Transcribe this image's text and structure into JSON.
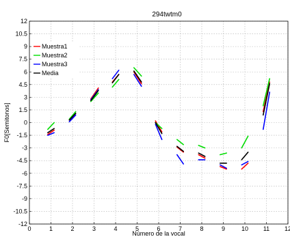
{
  "chart_data": {
    "type": "line",
    "title": "294twtm0",
    "xlabel": "Número de la vocal",
    "ylabel": "F0[Semitonos]",
    "xlim": [
      0,
      12
    ],
    "ylim": [
      -12,
      12
    ],
    "xticks": [
      "0",
      "1",
      "2",
      "3",
      "4",
      "5",
      "6",
      "7",
      "8",
      "9",
      "10",
      "11",
      "12"
    ],
    "yticks": [
      "-12",
      "-10.5",
      "-9",
      "-7.5",
      "-6",
      "-4.5",
      "-3",
      "-1.5",
      "0",
      "1.5",
      "3",
      "4.5",
      "6",
      "7.5",
      "9",
      "10.5",
      "12"
    ],
    "grid": true,
    "legend_position": "top-left",
    "series": [
      {
        "name": "Muestra1",
        "color": "#ff0000",
        "segments": [
          [
            [
              0.85,
              -1.4
            ],
            [
              1.15,
              -0.9
            ]
          ],
          [
            [
              1.85,
              0.3
            ],
            [
              2.15,
              1.1
            ]
          ],
          [
            [
              2.85,
              2.8
            ],
            [
              3.2,
              4.1
            ]
          ],
          [
            [
              3.85,
              4.8
            ],
            [
              4.15,
              5.7
            ]
          ],
          [
            [
              4.85,
              6.0
            ],
            [
              5.2,
              4.6
            ]
          ],
          [
            [
              5.85,
              0.2
            ],
            [
              6.15,
              -1.1
            ]
          ],
          [
            [
              6.85,
              -2.9
            ],
            [
              7.15,
              -3.5
            ]
          ],
          [
            [
              7.85,
              -3.8
            ],
            [
              8.15,
              -4.2
            ]
          ],
          [
            [
              8.85,
              -5.2
            ],
            [
              9.15,
              -5.5
            ]
          ],
          [
            [
              9.85,
              -5.5
            ],
            [
              10.15,
              -4.8
            ]
          ],
          [
            [
              10.85,
              1.3
            ],
            [
              11.15,
              4.8
            ]
          ]
        ]
      },
      {
        "name": "Muestra2",
        "color": "#00dd00",
        "segments": [
          [
            [
              0.85,
              -0.8
            ],
            [
              1.15,
              0.0
            ]
          ],
          [
            [
              1.85,
              0.4
            ],
            [
              2.15,
              1.3
            ]
          ],
          [
            [
              2.85,
              2.5
            ],
            [
              3.2,
              3.5
            ]
          ],
          [
            [
              3.85,
              4.2
            ],
            [
              4.15,
              5.1
            ]
          ],
          [
            [
              4.85,
              6.5
            ],
            [
              5.2,
              5.5
            ]
          ],
          [
            [
              5.85,
              0.0
            ],
            [
              6.15,
              -0.7
            ]
          ],
          [
            [
              6.85,
              -2.0
            ],
            [
              7.15,
              -2.6
            ]
          ],
          [
            [
              7.85,
              -2.7
            ],
            [
              8.15,
              -3.0
            ]
          ],
          [
            [
              8.85,
              -3.8
            ],
            [
              9.15,
              -3.6
            ]
          ],
          [
            [
              9.85,
              -3.0
            ],
            [
              10.15,
              -1.6
            ]
          ],
          [
            [
              10.85,
              2.0
            ],
            [
              11.15,
              5.2
            ]
          ]
        ]
      },
      {
        "name": "Muestra3",
        "color": "#0000ff",
        "segments": [
          [
            [
              0.85,
              -1.5
            ],
            [
              1.15,
              -1.2
            ]
          ],
          [
            [
              1.85,
              0.1
            ],
            [
              2.15,
              0.9
            ]
          ],
          [
            [
              2.85,
              2.7
            ],
            [
              3.2,
              3.9
            ]
          ],
          [
            [
              3.85,
              5.2
            ],
            [
              4.15,
              6.2
            ]
          ],
          [
            [
              4.85,
              5.7
            ],
            [
              5.2,
              4.3
            ]
          ],
          [
            [
              5.85,
              -0.2
            ],
            [
              6.15,
              -2.0
            ]
          ],
          [
            [
              6.85,
              -3.8
            ],
            [
              7.15,
              -4.9
            ]
          ],
          [
            [
              7.85,
              -4.4
            ],
            [
              8.15,
              -4.4
            ]
          ],
          [
            [
              8.85,
              -5.0
            ],
            [
              9.15,
              -5.4
            ]
          ],
          [
            [
              9.85,
              -5.0
            ],
            [
              10.15,
              -4.6
            ]
          ],
          [
            [
              10.85,
              -0.8
            ],
            [
              11.15,
              3.6
            ]
          ]
        ]
      },
      {
        "name": "Media",
        "color": "#000000",
        "segments": [
          [
            [
              0.85,
              -1.2
            ],
            [
              1.15,
              -0.7
            ]
          ],
          [
            [
              1.85,
              0.3
            ],
            [
              2.15,
              1.1
            ]
          ],
          [
            [
              2.85,
              2.6
            ],
            [
              3.2,
              3.8
            ]
          ],
          [
            [
              3.85,
              4.7
            ],
            [
              4.15,
              5.7
            ]
          ],
          [
            [
              4.85,
              6.1
            ],
            [
              5.2,
              4.8
            ]
          ],
          [
            [
              5.85,
              0.0
            ],
            [
              6.15,
              -1.3
            ]
          ],
          [
            [
              6.85,
              -2.8
            ],
            [
              7.15,
              -3.4
            ]
          ],
          [
            [
              7.85,
              -3.6
            ],
            [
              8.15,
              -4.0
            ]
          ],
          [
            [
              8.85,
              -4.8
            ],
            [
              9.15,
              -4.8
            ]
          ],
          [
            [
              9.85,
              -4.4
            ],
            [
              10.15,
              -3.5
            ]
          ],
          [
            [
              10.85,
              0.9
            ],
            [
              11.15,
              4.6
            ]
          ]
        ]
      }
    ]
  }
}
